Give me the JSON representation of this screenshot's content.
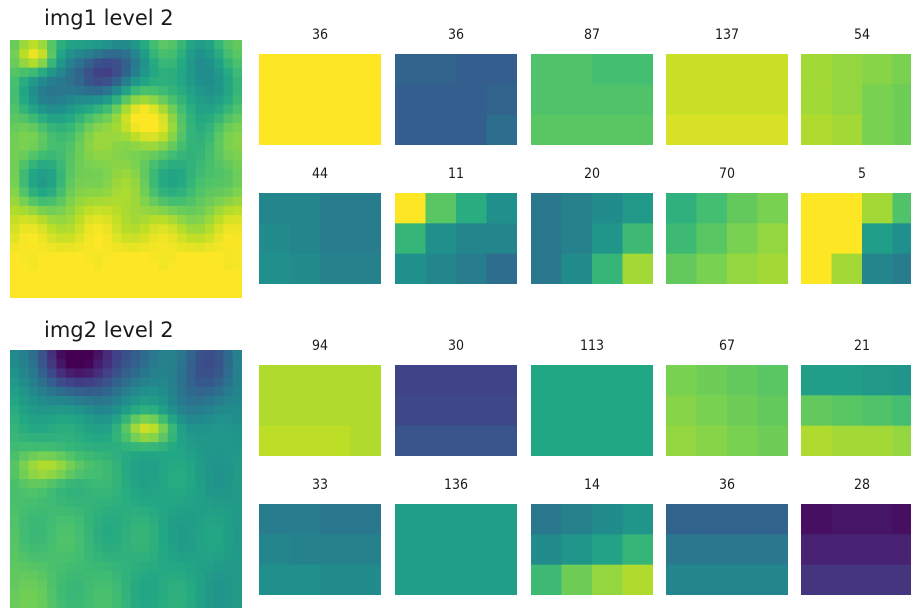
{
  "panels": [
    {
      "title": "img1 level 2",
      "tiles": [
        {
          "label": "36"
        },
        {
          "label": "36"
        },
        {
          "label": "87"
        },
        {
          "label": "137"
        },
        {
          "label": "54"
        },
        {
          "label": "44"
        },
        {
          "label": "11"
        },
        {
          "label": "20"
        },
        {
          "label": "70"
        },
        {
          "label": "5"
        }
      ]
    },
    {
      "title": "img2 level 2",
      "tiles": [
        {
          "label": "94"
        },
        {
          "label": "30"
        },
        {
          "label": "113"
        },
        {
          "label": "67"
        },
        {
          "label": "21"
        },
        {
          "label": "33"
        },
        {
          "label": "136"
        },
        {
          "label": "14"
        },
        {
          "label": "36"
        },
        {
          "label": "28"
        }
      ]
    }
  ],
  "colormap": "viridis"
}
